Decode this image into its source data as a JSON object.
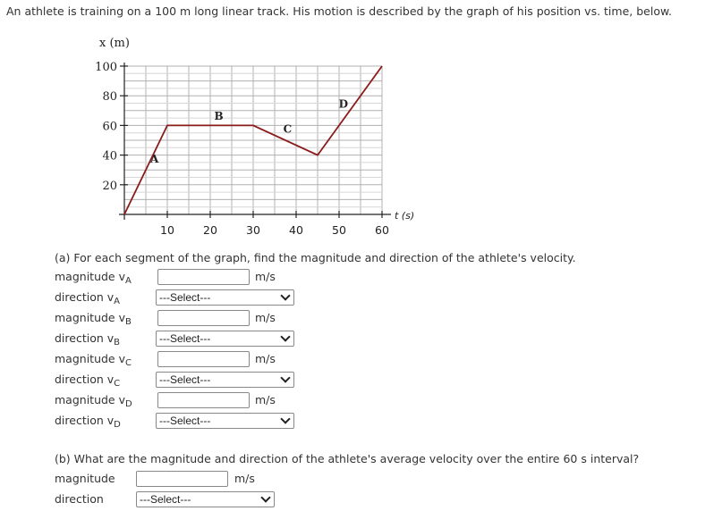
{
  "intro": "An athlete is training on a 100 m long linear track. His motion is described by the graph of his position vs. time, below.",
  "chart_data": {
    "type": "line",
    "xlabel": "t (s)",
    "ylabel": "x (m)",
    "xlim": [
      0,
      60
    ],
    "ylim": [
      0,
      100
    ],
    "xticks": [
      10,
      20,
      30,
      40,
      50,
      60
    ],
    "yticks": [
      20,
      40,
      60,
      80,
      100
    ],
    "grid": true,
    "series": [
      {
        "x": [
          0,
          10,
          30,
          45,
          60
        ],
        "y": [
          0,
          60,
          60,
          40,
          100
        ],
        "color": "#8b1a1a"
      }
    ],
    "segment_labels": [
      {
        "text": "A",
        "x": 7,
        "y": 35
      },
      {
        "text": "B",
        "x": 22,
        "y": 64
      },
      {
        "text": "C",
        "x": 38,
        "y": 55
      },
      {
        "text": "D",
        "x": 51,
        "y": 72
      }
    ]
  },
  "part_a": {
    "prompt": "(a) For each segment of the graph, find the magnitude and direction of the athlete's velocity.",
    "rows": [
      {
        "mag_label": "magnitude v",
        "dir_label": "direction v",
        "sub": "A",
        "unit": "m/s",
        "select": "---Select---"
      },
      {
        "mag_label": "magnitude v",
        "dir_label": "direction v",
        "sub": "B",
        "unit": "m/s",
        "select": "---Select---"
      },
      {
        "mag_label": "magnitude v",
        "dir_label": "direction v",
        "sub": "C",
        "unit": "m/s",
        "select": "---Select---"
      },
      {
        "mag_label": "magnitude v",
        "dir_label": "direction v",
        "sub": "D",
        "unit": "m/s",
        "select": "---Select---"
      }
    ]
  },
  "part_b": {
    "prompt": "(b) What are the magnitude and direction of the athlete's average velocity over the entire 60 s interval?",
    "mag_label": "magnitude",
    "unit": "m/s",
    "dir_label": "direction",
    "select": "---Select---"
  },
  "colors": {
    "line": "#8b1a1a",
    "grid": "#b0b0b0"
  }
}
